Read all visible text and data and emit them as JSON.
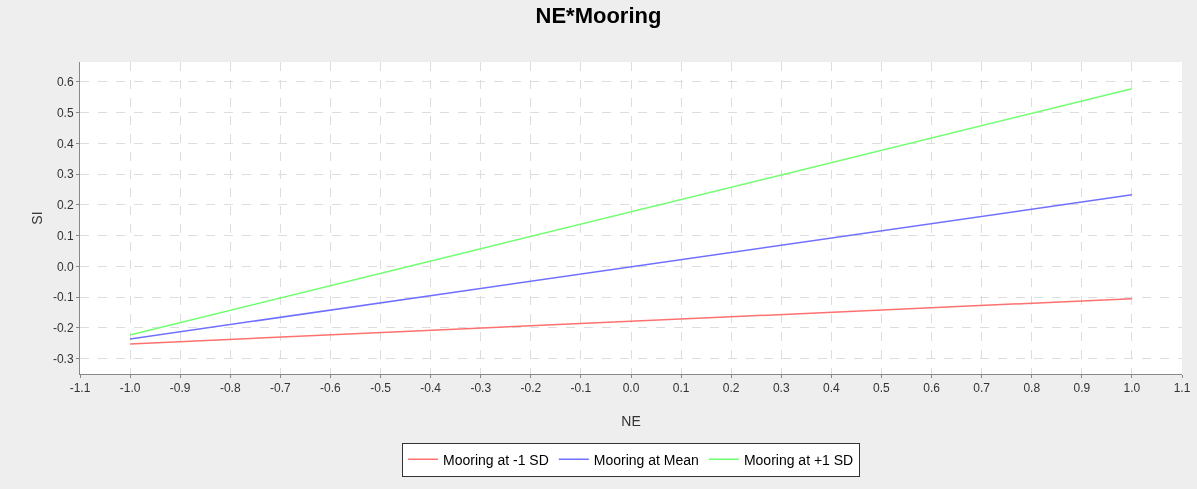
{
  "chart_data": {
    "type": "line",
    "title": "NE*Mooring",
    "xlabel": "NE",
    "ylabel": "SI",
    "x": [
      -1.0,
      1.0
    ],
    "series": [
      {
        "name": "Mooring at -1 SD",
        "color": "#ff7070",
        "values": [
          -0.252,
          -0.105
        ]
      },
      {
        "name": "Mooring at Mean",
        "color": "#7070ff",
        "values": [
          -0.236,
          0.233
        ]
      },
      {
        "name": "Mooring at +1 SD",
        "color": "#70ff70",
        "values": [
          -0.223,
          0.578
        ]
      }
    ],
    "xlim": [
      -1.1,
      1.1
    ],
    "xticks": [
      {
        "value": -1.1,
        "label": "-1.1"
      },
      {
        "value": -1.0,
        "label": "-1.0"
      },
      {
        "value": -0.9,
        "label": "-0.9"
      },
      {
        "value": -0.8,
        "label": "-0.8"
      },
      {
        "value": -0.7,
        "label": "-0.7"
      },
      {
        "value": -0.6,
        "label": "-0.6"
      },
      {
        "value": -0.5,
        "label": "-0.5"
      },
      {
        "value": -0.4,
        "label": "-0.4"
      },
      {
        "value": -0.3,
        "label": "-0.3"
      },
      {
        "value": -0.2,
        "label": "-0.2"
      },
      {
        "value": -0.1,
        "label": "-0.1"
      },
      {
        "value": 0,
        "label": "0.0"
      },
      {
        "value": 0.1,
        "label": "0.1"
      },
      {
        "value": 0.2,
        "label": "0.2"
      },
      {
        "value": 0.3,
        "label": "0.3"
      },
      {
        "value": 0.4,
        "label": "0.4"
      },
      {
        "value": 0.5,
        "label": "0.5"
      },
      {
        "value": 0.6,
        "label": "0.6"
      },
      {
        "value": 0.7,
        "label": "0.7"
      },
      {
        "value": 0.8,
        "label": "0.8"
      },
      {
        "value": 0.9,
        "label": "0.9"
      },
      {
        "value": 1.0,
        "label": "1.0"
      },
      {
        "value": 1.1,
        "label": "1.1"
      }
    ],
    "ylim": [
      -0.35,
      0.665
    ],
    "yticks": [
      -0.3,
      -0.2,
      -0.1,
      {
        "value": 0,
        "label": "0.0"
      },
      0.1,
      0.2,
      0.3,
      0.4,
      0.5,
      0.6
    ],
    "grid": true,
    "legend": "bottom",
    "marker": "none",
    "line_style": "solid"
  }
}
